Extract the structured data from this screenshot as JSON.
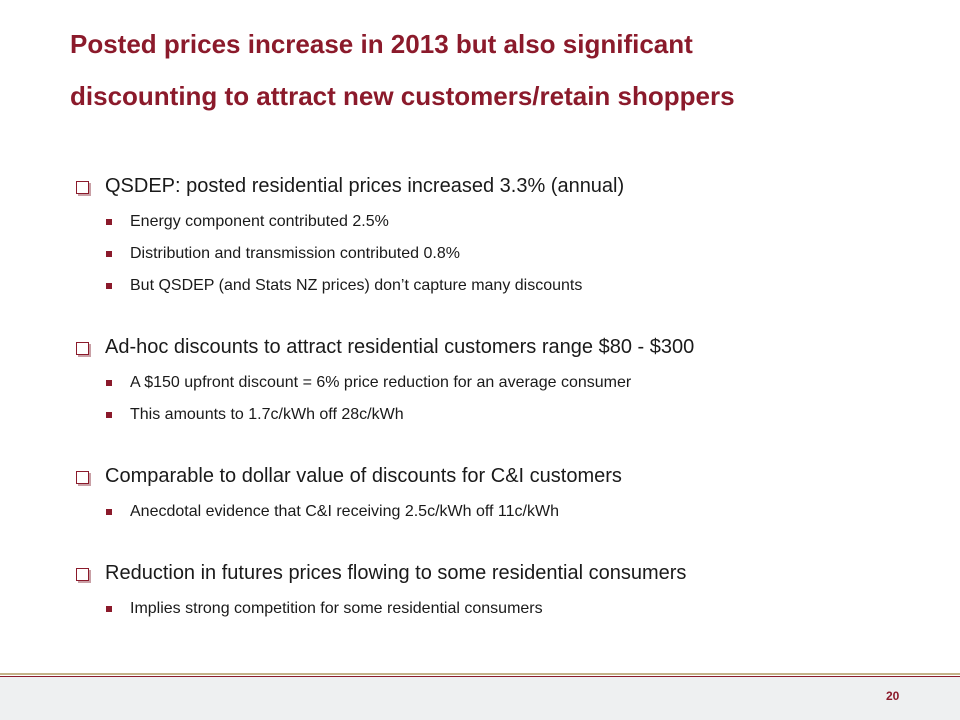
{
  "slide": {
    "title_lines": [
      "Posted prices increase in 2013 but also significant",
      "discounting to attract new customers/retain shoppers"
    ],
    "sections": [
      {
        "heading": "QSDEP: posted residential prices increased 3.3% (annual)",
        "bullets": [
          "Energy component contributed 2.5%",
          "Distribution and transmission contributed 0.8%",
          "But QSDEP (and Stats NZ prices) don’t capture many discounts"
        ]
      },
      {
        "heading": "Ad-hoc discounts to attract residential customers range $80 - $300",
        "bullets": [
          "A $150 upfront discount = 6% price reduction for an average consumer",
          "This amounts to 1.7c/kWh off 28c/kWh"
        ]
      },
      {
        "heading": "Comparable to dollar value of discounts for C&I customers",
        "bullets": [
          "Anecdotal evidence that C&I receiving 2.5c/kWh off 11c/kWh"
        ]
      },
      {
        "heading": "Reduction in futures prices flowing to some residential consumers",
        "bullets": [
          "Implies strong competition for some residential consumers"
        ]
      }
    ],
    "page_number": "20"
  },
  "colors": {
    "accent": "#8b1a2b",
    "footer_bg": "#eef0f1",
    "footer_rule": "#c4b48a"
  }
}
